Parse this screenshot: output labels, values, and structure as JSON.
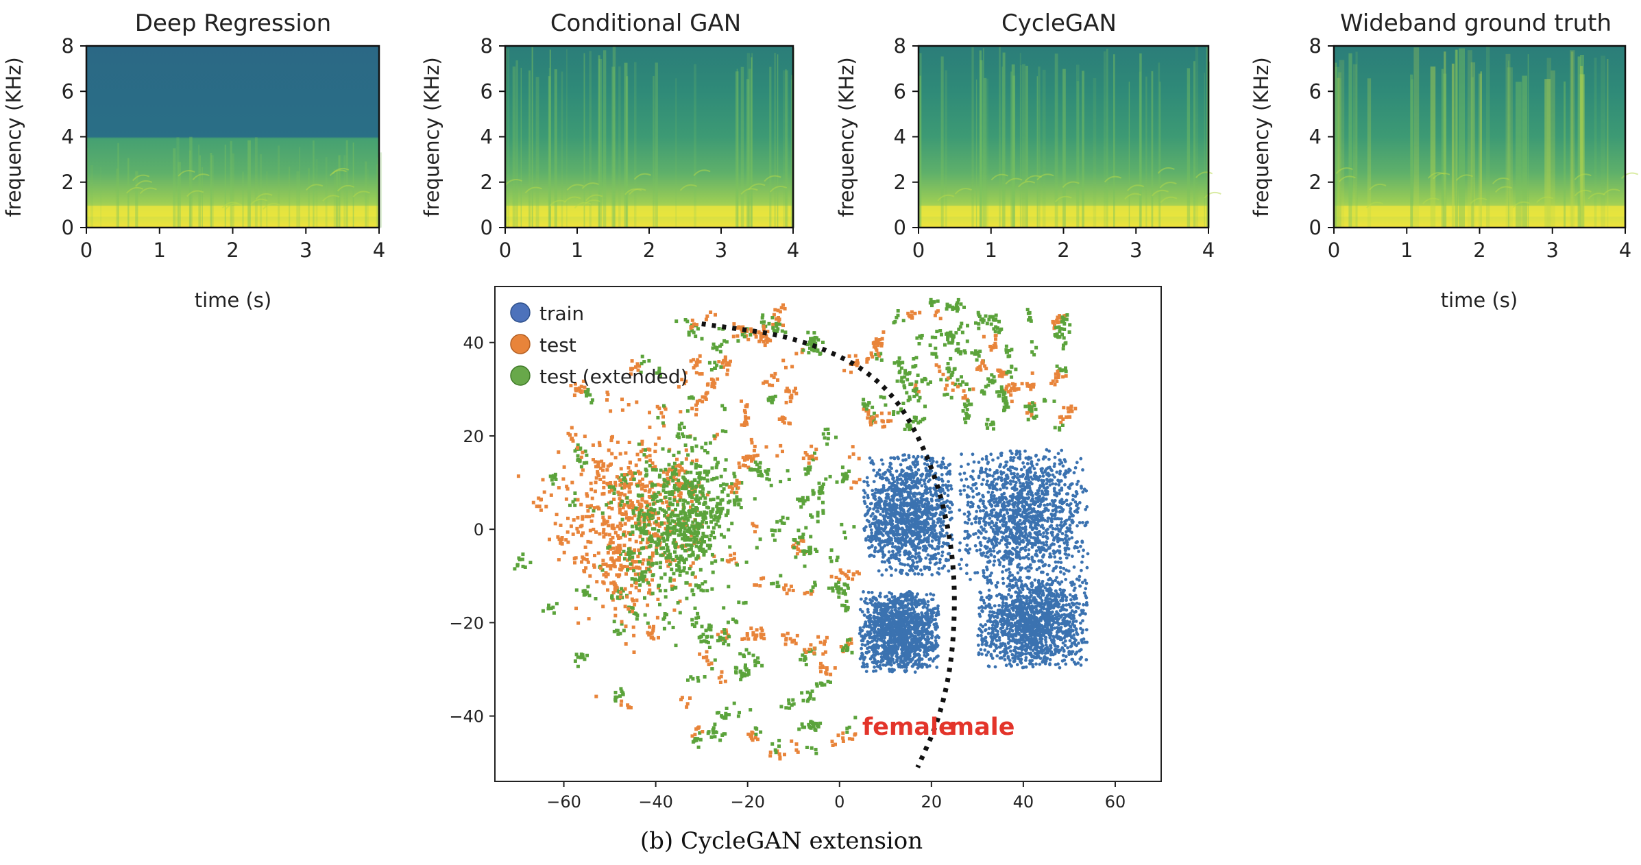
{
  "figure": {
    "caption": "(b) CycleGAN extension"
  },
  "chart_data": [
    {
      "type": "heatmap",
      "title": "Deep Regression",
      "title_color": "#e8512b",
      "xlabel": "time (s)",
      "ylabel": "frequency (KHz)",
      "xlim": [
        0,
        4
      ],
      "ylim": [
        0,
        8
      ],
      "xticks": [
        "0",
        "1",
        "2",
        "3",
        "4"
      ],
      "yticks": [
        "0",
        "2",
        "4",
        "6",
        "8"
      ],
      "band_cutoff_khz": 4,
      "colormap": "viridis"
    },
    {
      "type": "heatmap",
      "title": "Conditional GAN",
      "title_color": "#e8512b",
      "xlabel": "",
      "ylabel": "frequency (KHz)",
      "xlim": [
        0,
        4
      ],
      "ylim": [
        0,
        8
      ],
      "xticks": [
        "0",
        "1",
        "2",
        "3",
        "4"
      ],
      "yticks": [
        "0",
        "2",
        "4",
        "6",
        "8"
      ],
      "colormap": "viridis"
    },
    {
      "type": "heatmap",
      "title": "CycleGAN",
      "title_color": "#e8512b",
      "xlabel": "",
      "ylabel": "frequency (KHz)",
      "xlim": [
        0,
        4
      ],
      "ylim": [
        0,
        8
      ],
      "xticks": [
        "0",
        "1",
        "2",
        "3",
        "4"
      ],
      "yticks": [
        "0",
        "2",
        "4",
        "6",
        "8"
      ],
      "colormap": "viridis"
    },
    {
      "type": "heatmap",
      "title": "Wideband ground truth",
      "title_color": "#2b3ff0",
      "xlabel": "time (s)",
      "ylabel": "frequency (KHz)",
      "xlim": [
        0,
        4
      ],
      "ylim": [
        0,
        8
      ],
      "xticks": [
        "0",
        "1",
        "2",
        "3",
        "4"
      ],
      "yticks": [
        "0",
        "2",
        "4",
        "6",
        "8"
      ],
      "colormap": "viridis"
    },
    {
      "type": "scatter",
      "title": "",
      "xlabel": "",
      "ylabel": "",
      "xlim": [
        -75,
        70
      ],
      "ylim": [
        -54,
        52
      ],
      "xticks": [
        -60,
        -40,
        -20,
        0,
        20,
        40,
        60
      ],
      "yticks": [
        -40,
        -20,
        0,
        20,
        40
      ],
      "legend_position": "top-left",
      "series": [
        {
          "name": "train",
          "color": "#3b72b0",
          "clusters": [
            {
              "center": [
                15,
                3
              ],
              "spread": [
                9,
                12
              ]
            },
            {
              "center": [
                13,
                -22
              ],
              "spread": [
                8,
                8
              ]
            },
            {
              "center": [
                40,
                3
              ],
              "spread": [
                13,
                13
              ]
            },
            {
              "center": [
                42,
                -20
              ],
              "spread": [
                11,
                9
              ]
            }
          ]
        },
        {
          "name": "test",
          "color": "#e8843a",
          "clusters": [
            {
              "center": [
                -46,
                3
              ],
              "spread": [
                7,
                10
              ]
            }
          ]
        },
        {
          "name": "test (extended)",
          "color": "#5ba33b",
          "clusters": [
            {
              "center": [
                -35,
                2
              ],
              "spread": [
                6,
                8
              ]
            }
          ]
        }
      ],
      "boundary_curve": [
        [
          -30,
          44
        ],
        [
          -8,
          41
        ],
        [
          10,
          32
        ],
        [
          20,
          15
        ],
        [
          25,
          -5
        ],
        [
          25,
          -25
        ],
        [
          22,
          -40
        ],
        [
          17,
          -51
        ]
      ],
      "annotations": [
        {
          "text": "female",
          "x": 15,
          "y": -44,
          "color": "#e3342a"
        },
        {
          "text": "male",
          "x": 31,
          "y": -44,
          "color": "#e3342a"
        }
      ]
    }
  ]
}
